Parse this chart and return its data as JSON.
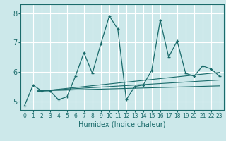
{
  "xlabel": "Humidex (Indice chaleur)",
  "background_color": "#cce8ea",
  "grid_color": "#ffffff",
  "line_color": "#1a6b6b",
  "xlim": [
    -0.5,
    23.5
  ],
  "ylim": [
    4.7,
    8.3
  ],
  "xticks": [
    0,
    1,
    2,
    3,
    4,
    5,
    6,
    7,
    8,
    9,
    10,
    11,
    12,
    13,
    14,
    15,
    16,
    17,
    18,
    19,
    20,
    21,
    22,
    23
  ],
  "yticks": [
    5,
    6,
    7,
    8
  ],
  "series": [
    [
      0,
      4.85
    ],
    [
      1,
      5.55
    ],
    [
      2,
      5.35
    ],
    [
      3,
      5.35
    ],
    [
      4,
      5.05
    ],
    [
      5,
      5.15
    ],
    [
      6,
      5.85
    ],
    [
      7,
      6.65
    ],
    [
      8,
      5.95
    ],
    [
      9,
      6.95
    ],
    [
      10,
      7.9
    ],
    [
      11,
      7.45
    ],
    [
      12,
      5.05
    ],
    [
      13,
      5.5
    ],
    [
      14,
      5.55
    ],
    [
      15,
      6.05
    ],
    [
      16,
      7.75
    ],
    [
      17,
      6.5
    ],
    [
      18,
      7.05
    ],
    [
      19,
      5.95
    ],
    [
      20,
      5.85
    ],
    [
      21,
      6.2
    ],
    [
      22,
      6.1
    ],
    [
      23,
      5.85
    ]
  ],
  "trend_lines": [
    [
      [
        1.5,
        5.35
      ],
      [
        23,
        5.52
      ]
    ],
    [
      [
        1.5,
        5.35
      ],
      [
        23,
        5.72
      ]
    ],
    [
      [
        1.5,
        5.33
      ],
      [
        23,
        5.98
      ]
    ]
  ]
}
